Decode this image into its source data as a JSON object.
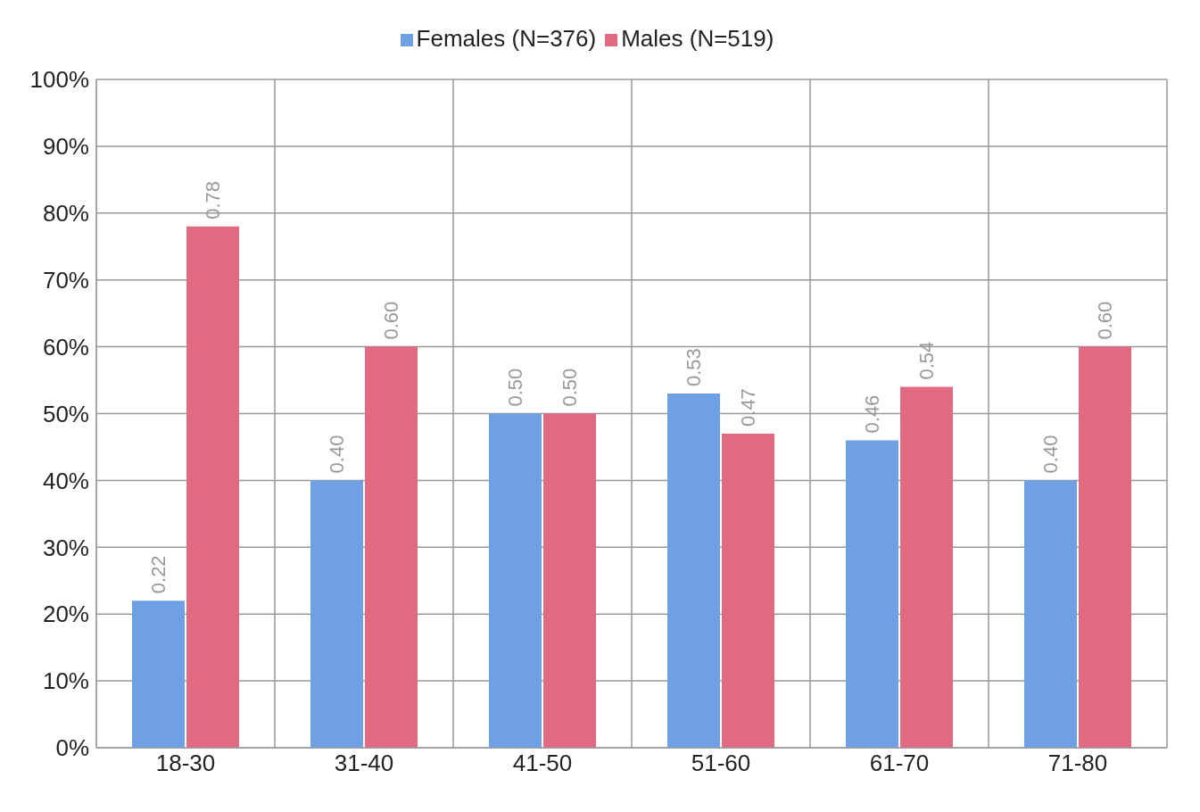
{
  "chart_data": {
    "type": "bar",
    "categories": [
      "18-30",
      "31-40",
      "41-50",
      "51-60",
      "61-70",
      "71-80"
    ],
    "series": [
      {
        "name": "Females (N=376)",
        "color": "#6fa0e6",
        "values": [
          0.22,
          0.4,
          0.5,
          0.53,
          0.46,
          0.4
        ],
        "value_labels": [
          "0.22",
          "0.40",
          "0.50",
          "0.53",
          "0.46",
          "0.40"
        ]
      },
      {
        "name": "Males (N=519)",
        "color": "#e06b80",
        "values": [
          0.78,
          0.6,
          0.5,
          0.47,
          0.54,
          0.6
        ],
        "value_labels": [
          "0.78",
          "0.60",
          "0.50",
          "0.47",
          "0.54",
          "0.60"
        ]
      }
    ],
    "ylim": [
      0,
      1
    ],
    "yticks": [
      {
        "value": 0,
        "label": "0%"
      },
      {
        "value": 0.1,
        "label": "10%"
      },
      {
        "value": 0.2,
        "label": "20%"
      },
      {
        "value": 0.3,
        "label": "30%"
      },
      {
        "value": 0.4,
        "label": "40%"
      },
      {
        "value": 0.5,
        "label": "50%"
      },
      {
        "value": 0.6,
        "label": "60%"
      },
      {
        "value": 0.7,
        "label": "70%"
      },
      {
        "value": 0.8,
        "label": "80%"
      },
      {
        "value": 0.9,
        "label": "90%"
      },
      {
        "value": 1,
        "label": "100%"
      }
    ],
    "grid": true,
    "legend": "top"
  }
}
